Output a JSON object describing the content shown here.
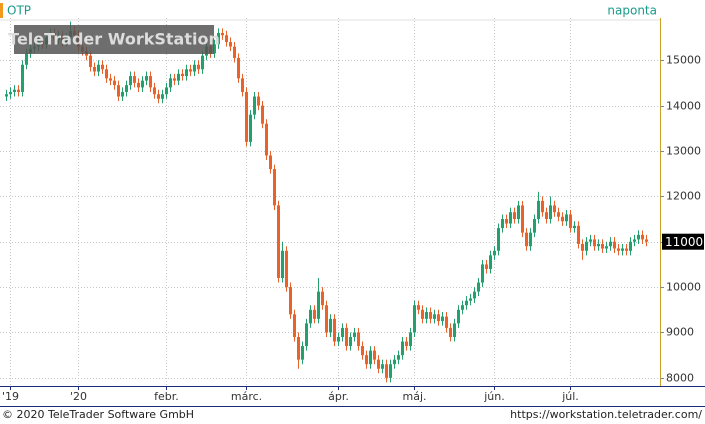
{
  "chart_data": {
    "type": "candlestick",
    "title": "OTP",
    "period": "naponta",
    "watermark": "TeleTrader WorkStation",
    "footer_left": "© 2020 TeleTrader Software GmbH",
    "footer_right": "https://workstation.teletrader.com/",
    "last_label": {
      "value": 11000,
      "label": "11000"
    },
    "up_color": "#23a06e",
    "down_color": "#e8622a",
    "grid": true,
    "xlim": [
      -1.5,
      163.5
    ],
    "xticks": [
      {
        "value": 1,
        "label": "'19"
      },
      {
        "value": 18,
        "label": "'20"
      },
      {
        "value": 40,
        "label": "febr."
      },
      {
        "value": 60,
        "label": "márc."
      },
      {
        "value": 83,
        "label": "ápr."
      },
      {
        "value": 102,
        "label": "máj."
      },
      {
        "value": 122,
        "label": "jún."
      },
      {
        "value": 141,
        "label": "júl."
      }
    ],
    "ylim": [
      7820,
      15930
    ],
    "yticks": [
      8000,
      9000,
      10000,
      11000,
      12000,
      13000,
      14000,
      15000
    ],
    "open": [
      14200,
      14250,
      14300,
      14350,
      14300,
      14900,
      15150,
      15250,
      15300,
      15400,
      15350,
      15500,
      15600,
      15450,
      15550,
      15400,
      15500,
      15650,
      15550,
      15300,
      15200,
      15100,
      14850,
      14750,
      14900,
      14800,
      14600,
      14550,
      14450,
      14200,
      14300,
      14450,
      14650,
      14500,
      14400,
      14550,
      14650,
      14400,
      14250,
      14150,
      14250,
      14400,
      14600,
      14550,
      14700,
      14650,
      14800,
      14750,
      14900,
      14800,
      15100,
      15300,
      15150,
      15350,
      15600,
      15550,
      15400,
      15300,
      15050,
      14600,
      14300,
      13200,
      13800,
      14200,
      14000,
      13600,
      12900,
      12600,
      11800,
      10200,
      10800,
      10000,
      9400,
      8900,
      8400,
      8700,
      9200,
      9500,
      9300,
      9900,
      9600,
      9000,
      9300,
      8800,
      8900,
      9100,
      8700,
      8900,
      9000,
      8700,
      8500,
      8300,
      8600,
      8400,
      8200,
      8300,
      8000,
      8300,
      8400,
      8500,
      8800,
      8700,
      9000,
      9600,
      9500,
      9300,
      9450,
      9300,
      9400,
      9250,
      9350,
      9100,
      8900,
      9200,
      9500,
      9600,
      9700,
      9750,
      9900,
      10100,
      10500,
      10400,
      10700,
      10800,
      11300,
      11500,
      11400,
      11650,
      11500,
      11800,
      11200,
      10900,
      11200,
      11500,
      11900,
      11650,
      11500,
      11800,
      11650,
      11550,
      11450,
      11600,
      11300,
      11350,
      10950,
      10800,
      11000,
      11050,
      10900,
      10950,
      10850,
      10900,
      11000,
      10850,
      10800,
      10850,
      10800,
      11000,
      11050,
      11150,
      11050
    ],
    "high": [
      14350,
      14400,
      14450,
      14450,
      15000,
      15250,
      15350,
      15400,
      15500,
      15500,
      15600,
      15700,
      15700,
      15650,
      15650,
      15600,
      15850,
      15750,
      15650,
      15400,
      15300,
      15200,
      14950,
      15000,
      15000,
      14900,
      14700,
      14650,
      14550,
      14400,
      14550,
      14750,
      14750,
      14600,
      14650,
      14750,
      14750,
      14500,
      14350,
      14350,
      14500,
      14700,
      14700,
      14800,
      14800,
      14900,
      14900,
      15000,
      15000,
      15200,
      15400,
      15400,
      15450,
      15700,
      15700,
      15650,
      15500,
      15400,
      15150,
      14700,
      14400,
      13900,
      14300,
      14300,
      14100,
      13700,
      13000,
      12700,
      11900,
      11000,
      10900,
      10100,
      9500,
      9000,
      8800,
      9300,
      9600,
      9600,
      10200,
      10000,
      9700,
      9400,
      9400,
      9000,
      9200,
      9200,
      9000,
      9100,
      9100,
      8800,
      8600,
      8700,
      8700,
      8500,
      8400,
      8400,
      8400,
      8500,
      8600,
      8900,
      8900,
      9100,
      9700,
      9700,
      9600,
      9550,
      9550,
      9500,
      9500,
      9450,
      9450,
      9200,
      9300,
      9600,
      9700,
      9800,
      9850,
      10000,
      10200,
      10600,
      10600,
      10800,
      10900,
      11400,
      11600,
      11600,
      11750,
      11750,
      11900,
      11900,
      11300,
      11300,
      11600,
      12100,
      12000,
      11750,
      12000,
      11900,
      11750,
      11650,
      11700,
      11700,
      11450,
      11450,
      11050,
      11100,
      11150,
      11150,
      11050,
      11050,
      11000,
      11100,
      11100,
      10950,
      10950,
      10950,
      11100,
      11150,
      11250,
      11250,
      11150
    ],
    "low": [
      14100,
      14150,
      14200,
      14200,
      14200,
      14800,
      15050,
      15150,
      15200,
      15250,
      15250,
      15400,
      15350,
      15350,
      15300,
      15300,
      15400,
      15450,
      15200,
      15100,
      15000,
      14750,
      14650,
      14650,
      14700,
      14500,
      14450,
      14350,
      14100,
      14100,
      14200,
      14350,
      14400,
      14300,
      14300,
      14450,
      14300,
      14150,
      14050,
      14050,
      14150,
      14300,
      14450,
      14450,
      14550,
      14550,
      14650,
      14650,
      14700,
      14700,
      15000,
      15050,
      15050,
      15250,
      15450,
      15300,
      15200,
      14950,
      14500,
      14200,
      13100,
      13100,
      13700,
      13900,
      13500,
      12800,
      12500,
      11700,
      10100,
      10100,
      9900,
      9300,
      8800,
      8200,
      8300,
      8600,
      9100,
      9200,
      9200,
      9500,
      8900,
      8900,
      8700,
      8700,
      8800,
      8600,
      8600,
      8800,
      8600,
      8400,
      8200,
      8200,
      8300,
      8100,
      8100,
      7900,
      7900,
      8200,
      8300,
      8400,
      8600,
      8600,
      8900,
      9400,
      9200,
      9200,
      9200,
      9200,
      9150,
      9150,
      9000,
      8800,
      8800,
      9100,
      9400,
      9500,
      9600,
      9650,
      9800,
      10000,
      10300,
      10300,
      10600,
      10700,
      11200,
      11300,
      11300,
      11400,
      11400,
      11100,
      10800,
      10800,
      11100,
      11400,
      11550,
      11400,
      11400,
      11550,
      11450,
      11350,
      11350,
      11200,
      11200,
      10850,
      10600,
      10700,
      10900,
      10800,
      10800,
      10750,
      10750,
      10800,
      10750,
      10700,
      10700,
      10700,
      10700,
      10900,
      10950,
      10950,
      10900
    ],
    "close": [
      14250,
      14300,
      14350,
      14300,
      14900,
      15150,
      15250,
      15300,
      15400,
      15350,
      15500,
      15600,
      15450,
      15550,
      15400,
      15500,
      15650,
      15550,
      15300,
      15200,
      15100,
      14850,
      14750,
      14900,
      14800,
      14600,
      14550,
      14450,
      14200,
      14300,
      14450,
      14650,
      14500,
      14400,
      14550,
      14650,
      14400,
      14250,
      14150,
      14250,
      14400,
      14600,
      14550,
      14700,
      14650,
      14800,
      14750,
      14900,
      14800,
      15100,
      15300,
      15150,
      15350,
      15600,
      15550,
      15400,
      15300,
      15050,
      14600,
      14300,
      13200,
      13800,
      14200,
      14000,
      13600,
      12900,
      12600,
      11800,
      10200,
      10800,
      10000,
      9400,
      8900,
      8400,
      8700,
      9200,
      9500,
      9300,
      9900,
      9600,
      9000,
      9300,
      8800,
      8900,
      9100,
      8700,
      8900,
      9000,
      8700,
      8500,
      8300,
      8600,
      8400,
      8200,
      8300,
      8000,
      8300,
      8400,
      8500,
      8800,
      8700,
      9000,
      9600,
      9500,
      9300,
      9450,
      9300,
      9400,
      9250,
      9350,
      9100,
      8900,
      9200,
      9500,
      9600,
      9700,
      9750,
      9900,
      10100,
      10500,
      10400,
      10700,
      10800,
      11300,
      11500,
      11400,
      11650,
      11500,
      11800,
      11200,
      10900,
      11200,
      11500,
      11900,
      11650,
      11500,
      11800,
      11650,
      11550,
      11450,
      11600,
      11300,
      11350,
      10950,
      10800,
      11000,
      11050,
      10900,
      10950,
      10850,
      10900,
      11000,
      10850,
      10800,
      10850,
      10800,
      11000,
      11050,
      11150,
      11050,
      11000
    ]
  }
}
